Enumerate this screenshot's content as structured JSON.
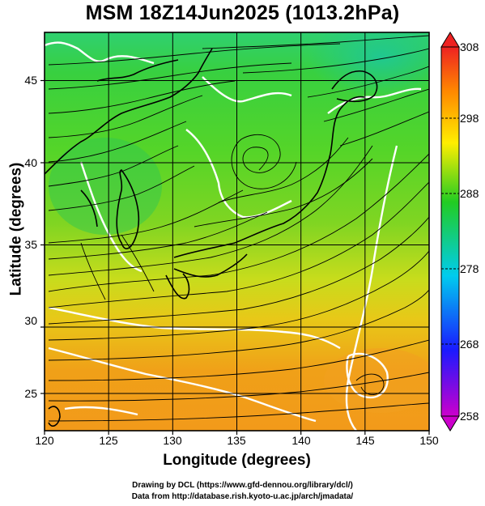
{
  "title": "MSM 18Z14Jun2025 (1013.2hPa)",
  "xlabel": "Longitude (degrees)",
  "ylabel": "Latitude  (degrees)",
  "credits": [
    "Drawing by DCL (https://www.gfd-dennou.org/library/dcl/)",
    "Data from http://database.rish.kyoto-u.ac.jp/arch/jmadata/"
  ],
  "map": {
    "lon_range": [
      120,
      150
    ],
    "lat_range": [
      22.4,
      47.6
    ],
    "lon_ticks": [
      "120",
      "125",
      "130",
      "135",
      "140",
      "145",
      "150"
    ],
    "lat_ticks": [
      "25",
      "30",
      "35",
      "40",
      "45"
    ],
    "field": "temperature (K) with surface wind streamlines",
    "land_outline_color": "#000000",
    "contour_color": "#ffffff"
  },
  "colorbar": {
    "min": 258,
    "max": 308,
    "labels": [
      "308",
      "298",
      "288",
      "278",
      "268",
      "258"
    ],
    "colors": [
      "#cc00cc",
      "#1a1aff",
      "#00ccee",
      "#22cc22",
      "#ffee00",
      "#ff8800",
      "#ee2222"
    ]
  }
}
